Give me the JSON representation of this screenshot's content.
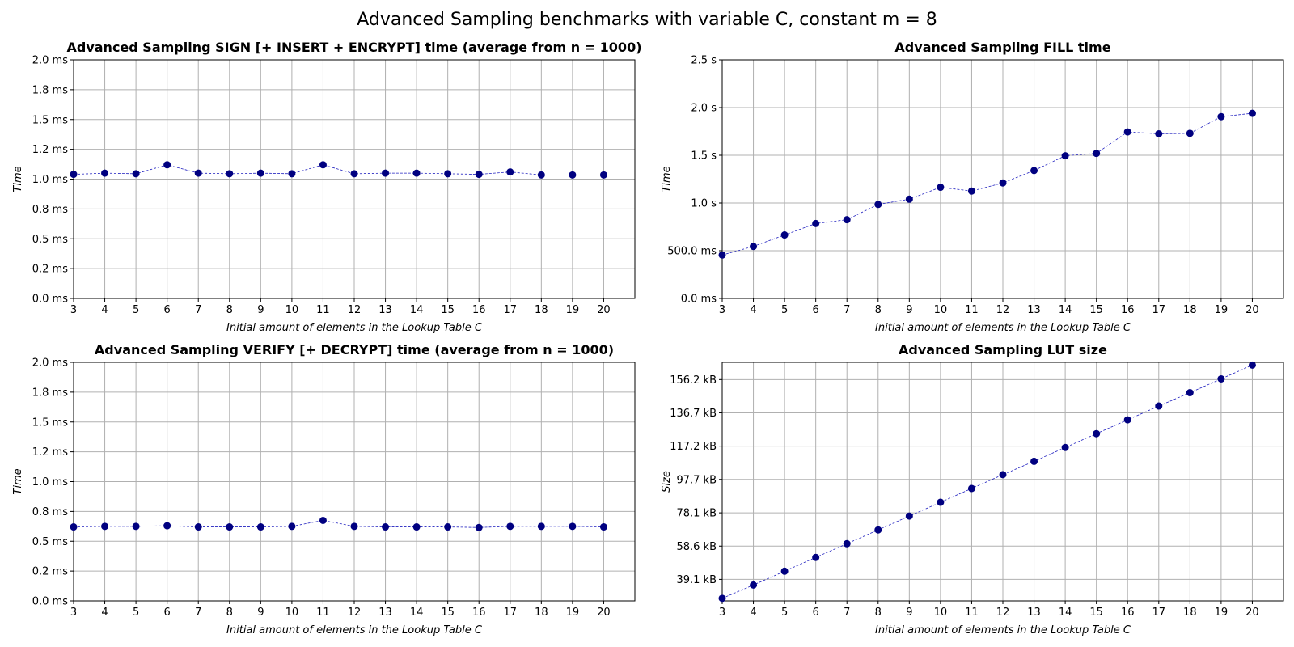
{
  "suptitle": "Advanced Sampling benchmarks with variable C, constant m = 8",
  "colors": {
    "marker": "#000080",
    "line": "#1f1fbf",
    "grid": "#b0b0b0"
  },
  "chart_data": [
    {
      "type": "line",
      "title": "Advanced Sampling SIGN [+ INSERT + ENCRYPT] time (average from n = 1000)",
      "xlabel": "Initial amount of elements in the Lookup Table C",
      "ylabel": "Time",
      "xlim": [
        3,
        21
      ],
      "ylim": [
        0,
        2.0
      ],
      "grid": true,
      "x": [
        3,
        4,
        5,
        6,
        7,
        8,
        9,
        10,
        11,
        12,
        13,
        14,
        15,
        16,
        17,
        18,
        19,
        20
      ],
      "y": [
        1.04,
        1.05,
        1.045,
        1.12,
        1.05,
        1.045,
        1.05,
        1.045,
        1.12,
        1.045,
        1.05,
        1.05,
        1.045,
        1.04,
        1.06,
        1.035,
        1.035,
        1.035
      ],
      "yticks": [
        0,
        0.25,
        0.5,
        0.75,
        1.0,
        1.25,
        1.5,
        1.75,
        2.0
      ],
      "ytick_labels": [
        "0.0 ms",
        "0.2 ms",
        "0.5 ms",
        "0.8 ms",
        "1.0 ms",
        "1.2 ms",
        "1.5 ms",
        "1.8 ms",
        "2.0 ms"
      ],
      "xticks": [
        3,
        4,
        5,
        6,
        7,
        8,
        9,
        10,
        11,
        12,
        13,
        14,
        15,
        16,
        17,
        18,
        19,
        20
      ]
    },
    {
      "type": "line",
      "title": "Advanced Sampling FILL time",
      "xlabel": "Initial amount of elements in the Lookup Table C",
      "ylabel": "Time",
      "xlim": [
        3,
        21
      ],
      "ylim": [
        0,
        2.5
      ],
      "grid": true,
      "x": [
        3,
        4,
        5,
        6,
        7,
        8,
        9,
        10,
        11,
        12,
        13,
        14,
        15,
        16,
        17,
        18,
        19,
        20
      ],
      "y": [
        0.455,
        0.545,
        0.665,
        0.785,
        0.825,
        0.985,
        1.04,
        1.165,
        1.125,
        1.21,
        1.34,
        1.495,
        1.52,
        1.745,
        1.725,
        1.73,
        1.905,
        1.94
      ],
      "yticks": [
        0,
        0.5,
        1.0,
        1.5,
        2.0,
        2.5
      ],
      "ytick_labels": [
        "0.0 ms",
        "500.0 ms",
        "1.0 s",
        "1.5 s",
        "2.0 s",
        "2.5 s"
      ],
      "xticks": [
        3,
        4,
        5,
        6,
        7,
        8,
        9,
        10,
        11,
        12,
        13,
        14,
        15,
        16,
        17,
        18,
        19,
        20
      ]
    },
    {
      "type": "line",
      "title": "Advanced Sampling VERIFY [+ DECRYPT] time (average from n = 1000)",
      "xlabel": "Initial amount of elements in the Lookup Table C",
      "ylabel": "Time",
      "xlim": [
        3,
        21
      ],
      "ylim": [
        0,
        2.0
      ],
      "grid": true,
      "x": [
        3,
        4,
        5,
        6,
        7,
        8,
        9,
        10,
        11,
        12,
        13,
        14,
        15,
        16,
        17,
        18,
        19,
        20
      ],
      "y": [
        0.62,
        0.625,
        0.625,
        0.63,
        0.62,
        0.62,
        0.62,
        0.625,
        0.675,
        0.625,
        0.62,
        0.62,
        0.62,
        0.615,
        0.625,
        0.625,
        0.625,
        0.62
      ],
      "yticks": [
        0,
        0.25,
        0.5,
        0.75,
        1.0,
        1.25,
        1.5,
        1.75,
        2.0
      ],
      "ytick_labels": [
        "0.0 ms",
        "0.2 ms",
        "0.5 ms",
        "0.8 ms",
        "1.0 ms",
        "1.2 ms",
        "1.5 ms",
        "1.8 ms",
        "2.0 ms"
      ],
      "xticks": [
        3,
        4,
        5,
        6,
        7,
        8,
        9,
        10,
        11,
        12,
        13,
        14,
        15,
        16,
        17,
        18,
        19,
        20
      ]
    },
    {
      "type": "line",
      "title": "Advanced Sampling LUT size",
      "xlabel": "Initial amount of elements in the Lookup Table C",
      "ylabel": "Size",
      "xlim": [
        3,
        21
      ],
      "ylim": [
        26.5,
        166.3
      ],
      "grid": true,
      "x": [
        3,
        4,
        5,
        6,
        7,
        8,
        9,
        10,
        11,
        12,
        13,
        14,
        15,
        16,
        17,
        18,
        19,
        20
      ],
      "y": [
        28.0,
        35.8,
        43.9,
        52.0,
        60.0,
        68.1,
        76.2,
        84.3,
        92.4,
        100.5,
        108.3,
        116.4,
        124.5,
        132.6,
        140.7,
        148.5,
        156.6,
        164.7
      ],
      "yticks": [
        39.1,
        58.6,
        78.1,
        97.7,
        117.2,
        136.7,
        156.2
      ],
      "ytick_labels": [
        "39.1 kB",
        "58.6 kB",
        "78.1 kB",
        "97.7 kB",
        "117.2 kB",
        "136.7 kB",
        "156.2 kB"
      ],
      "xticks": [
        3,
        4,
        5,
        6,
        7,
        8,
        9,
        10,
        11,
        12,
        13,
        14,
        15,
        16,
        17,
        18,
        19,
        20
      ]
    }
  ]
}
